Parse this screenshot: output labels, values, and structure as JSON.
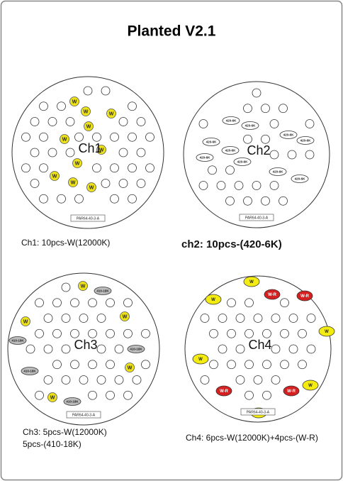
{
  "title": "Planted V2.1",
  "panels": [
    {
      "channel": "Ch1",
      "board": "PAR64-40-3-A",
      "caption": [
        "Ch1: 10pcs-W(12000K)"
      ],
      "leds": [
        "W",
        "W",
        "W",
        "W",
        "W",
        "W",
        "W",
        "W",
        "W",
        "W"
      ]
    },
    {
      "channel": "Ch2",
      "board": "PAR64-40-3-A",
      "caption": [
        "ch2: 10pcs-(420-6K)"
      ],
      "leds": [
        "420-6K",
        "420-6K",
        "420-6K",
        "420-6K",
        "420-6K",
        "420-6K",
        "420-6K",
        "420-6K",
        "420-6K",
        "420-6K"
      ]
    },
    {
      "channel": "Ch3",
      "board": "PAR64-40-3-A",
      "caption": [
        "Ch3: 5pcs-W(12000K)",
        "5pcs-(410-18K)"
      ],
      "leds": [
        "W",
        "W",
        "W",
        "W",
        "W",
        "410-18K",
        "410-18K",
        "410-18K",
        "410-18K",
        "410-18K"
      ]
    },
    {
      "channel": "Ch4",
      "board": "PAR64-40-3-A",
      "caption": [
        "Ch4: 6pcs-W(12000K)+4pcs-(W-R)"
      ],
      "leds": [
        "W",
        "W",
        "W",
        "W",
        "W",
        "W",
        "W-R",
        "W-R",
        "W-R",
        "W-R"
      ]
    }
  ]
}
